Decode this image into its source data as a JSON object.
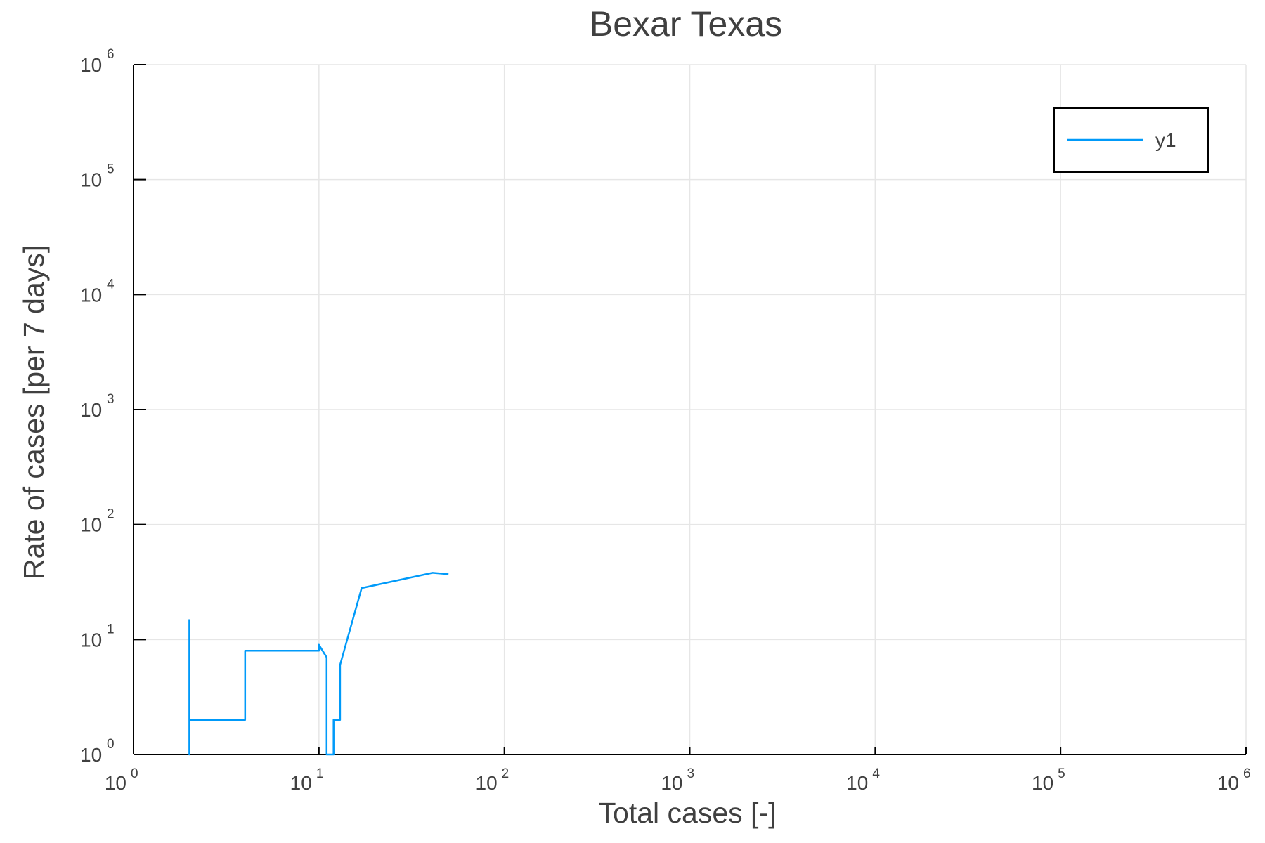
{
  "chart_data": {
    "type": "line",
    "title": "Bexar Texas",
    "xlabel": "Total cases [-]",
    "ylabel": "Rate of cases [per 7 days]",
    "xscale": "log",
    "yscale": "log",
    "xlim": [
      1,
      1000000
    ],
    "ylim": [
      1,
      1000000
    ],
    "grid": true,
    "legend_position": "top-right",
    "x_ticks": [
      {
        "base": "10",
        "exp": "0"
      },
      {
        "base": "10",
        "exp": "1"
      },
      {
        "base": "10",
        "exp": "2"
      },
      {
        "base": "10",
        "exp": "3"
      },
      {
        "base": "10",
        "exp": "4"
      },
      {
        "base": "10",
        "exp": "5"
      },
      {
        "base": "10",
        "exp": "6"
      }
    ],
    "y_ticks": [
      {
        "base": "10",
        "exp": "0"
      },
      {
        "base": "10",
        "exp": "1"
      },
      {
        "base": "10",
        "exp": "2"
      },
      {
        "base": "10",
        "exp": "3"
      },
      {
        "base": "10",
        "exp": "4"
      },
      {
        "base": "10",
        "exp": "5"
      },
      {
        "base": "10",
        "exp": "6"
      }
    ],
    "series": [
      {
        "name": "y1",
        "color": "#009af9",
        "points": [
          {
            "x": 2,
            "y": 15
          },
          {
            "x": 2,
            "y": 1
          },
          {
            "x": 2,
            "y": 2
          },
          {
            "x": 4,
            "y": 2
          },
          {
            "x": 4,
            "y": 8
          },
          {
            "x": 10,
            "y": 8
          },
          {
            "x": 10,
            "y": 9
          },
          {
            "x": 11,
            "y": 7
          },
          {
            "x": 11,
            "y": 1
          },
          {
            "x": 12,
            "y": 1
          },
          {
            "x": 12,
            "y": 2
          },
          {
            "x": 13,
            "y": 2
          },
          {
            "x": 13,
            "y": 6
          },
          {
            "x": 17,
            "y": 28
          },
          {
            "x": 41,
            "y": 38
          },
          {
            "x": 50,
            "y": 37
          }
        ]
      }
    ]
  }
}
